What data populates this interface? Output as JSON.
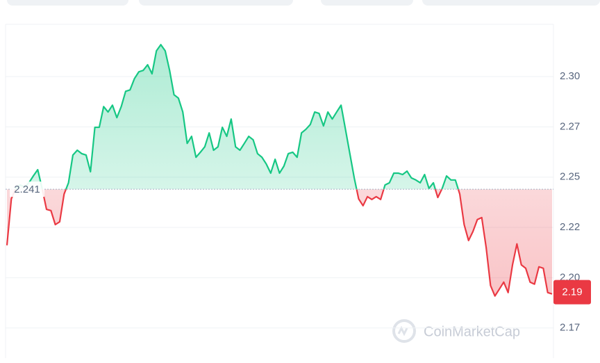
{
  "chart_data": {
    "type": "line",
    "values": [
      2.2131,
      2.2362,
      2.2414,
      2.2431,
      2.2421,
      2.2442,
      2.2476,
      2.2507,
      2.2414,
      2.231,
      2.2304,
      2.2234,
      2.2248,
      2.2386,
      2.2442,
      2.258,
      2.2604,
      2.2587,
      2.258,
      2.2497,
      2.2718,
      2.2718,
      2.2821,
      2.2794,
      2.2828,
      2.2766,
      2.2821,
      2.2897,
      2.2904,
      2.296,
      2.2994,
      2.3001,
      2.3029,
      2.2984,
      2.3098,
      2.3129,
      2.3098,
      2.3001,
      2.288,
      2.2863,
      2.2794,
      2.2638,
      2.2673,
      2.2569,
      2.2594,
      2.2621,
      2.269,
      2.2604,
      2.2621,
      2.2718,
      2.2673,
      2.2759,
      2.2621,
      2.2604,
      2.2638,
      2.2673,
      2.2656,
      2.2587,
      2.2569,
      2.2535,
      2.249,
      2.2559,
      2.249,
      2.2525,
      2.2587,
      2.2594,
      2.2569,
      2.269,
      2.2708,
      2.2732,
      2.2794,
      2.2787,
      2.2725,
      2.2794,
      2.2759,
      2.2794,
      2.2828,
      2.2708,
      2.2587,
      2.2466,
      2.2362,
      2.2328,
      2.2373,
      2.2359,
      2.2373,
      2.2359,
      2.2431,
      2.2442,
      2.249,
      2.249,
      2.2483,
      2.25,
      2.2466,
      2.2456,
      2.2442,
      2.2483,
      2.2414,
      2.2442,
      2.2369,
      2.2414,
      2.2476,
      2.2456,
      2.2456,
      2.2386,
      2.2234,
      2.2155,
      2.22,
      2.2259,
      2.2269,
      2.2121,
      2.1931,
      2.1879,
      2.1913,
      2.1948,
      2.1896,
      2.2034,
      2.2138,
      2.2034,
      2.2017,
      2.1948,
      2.1938,
      2.2024,
      2.2017,
      2.1896,
      2.1889
    ],
    "baseline": 2.241,
    "current_price": 2.19,
    "up_color": "#16c784",
    "down_color": "#ea3943",
    "ylim": [
      2.157,
      2.323
    ],
    "yticks": [
      {
        "value": 2.172,
        "label": "2.17"
      },
      {
        "value": 2.197,
        "label": "2.20"
      },
      {
        "value": 2.222,
        "label": "2.22"
      },
      {
        "value": 2.247,
        "label": "2.25"
      },
      {
        "value": 2.272,
        "label": "2.27"
      },
      {
        "value": 2.297,
        "label": "2.30"
      }
    ],
    "grid": true,
    "watermark": "CoinMarketCap"
  }
}
